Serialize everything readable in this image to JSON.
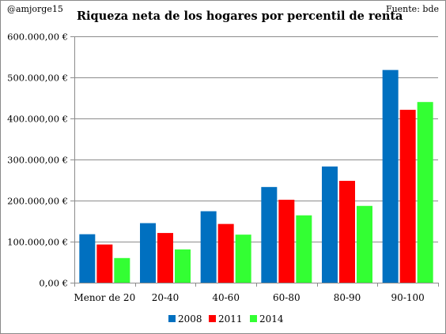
{
  "header": {
    "author": "@amjorge15",
    "source": "Fuente: bde"
  },
  "chart_data": {
    "type": "bar",
    "title": "Riqueza neta de los hogares por percentil de renta",
    "xlabel": "",
    "ylabel": "",
    "categories": [
      "Menor de 20",
      "20-40",
      "40-60",
      "60-80",
      "80-90",
      "90-100"
    ],
    "series": [
      {
        "name": "2008",
        "color": "#0070c0",
        "values": [
          118000,
          145000,
          174000,
          233000,
          283000,
          518000
        ]
      },
      {
        "name": "2011",
        "color": "#ff0000",
        "values": [
          93000,
          121000,
          143000,
          202000,
          248000,
          421000
        ]
      },
      {
        "name": "2014",
        "color": "#33ff33",
        "values": [
          60000,
          81000,
          117000,
          164000,
          187000,
          440000
        ]
      }
    ],
    "ylim": [
      0,
      600000
    ],
    "yticks": [
      0,
      100000,
      200000,
      300000,
      400000,
      500000,
      600000
    ],
    "ytick_labels": [
      "0,00 €",
      "100.000,00 €",
      "200.000,00 €",
      "300.000,00 €",
      "400.000,00 €",
      "500.000,00 €",
      "600.000,00 €"
    ],
    "grid": true,
    "legend_position": "bottom"
  }
}
